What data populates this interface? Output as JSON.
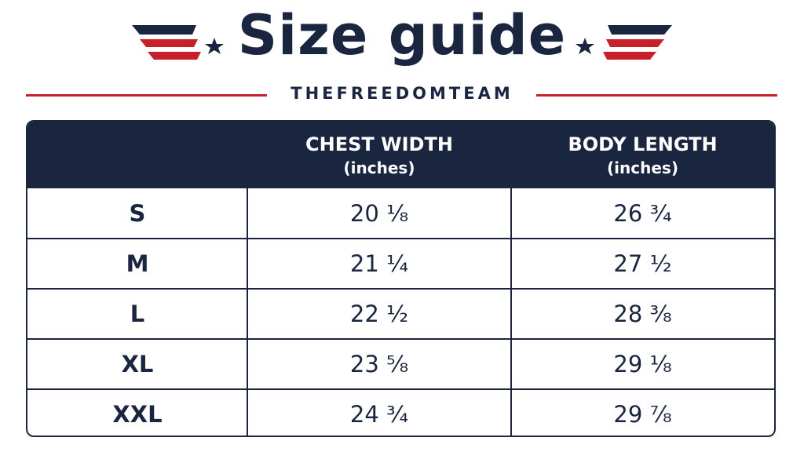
{
  "header": {
    "title": "Size guide",
    "subtitle": "THEFREEDOMTEAM"
  },
  "table": {
    "columns": [
      {
        "label": "CHEST WIDTH",
        "unit": "(inches)"
      },
      {
        "label": "BODY LENGTH",
        "unit": "(inches)"
      }
    ],
    "rows": [
      [
        "S",
        "20 ¹⁄₈",
        "26 ³⁄₄"
      ],
      [
        "M",
        "21 ¹⁄₄",
        "27 ¹⁄₂"
      ],
      [
        "L",
        "22 ¹⁄₂",
        "28 ³⁄₈"
      ],
      [
        "XL",
        "23 ⁵⁄₈",
        "29 ¹⁄₈"
      ],
      [
        "XXL",
        "24 ³⁄₄",
        "29 ⁷⁄₈"
      ]
    ]
  }
}
